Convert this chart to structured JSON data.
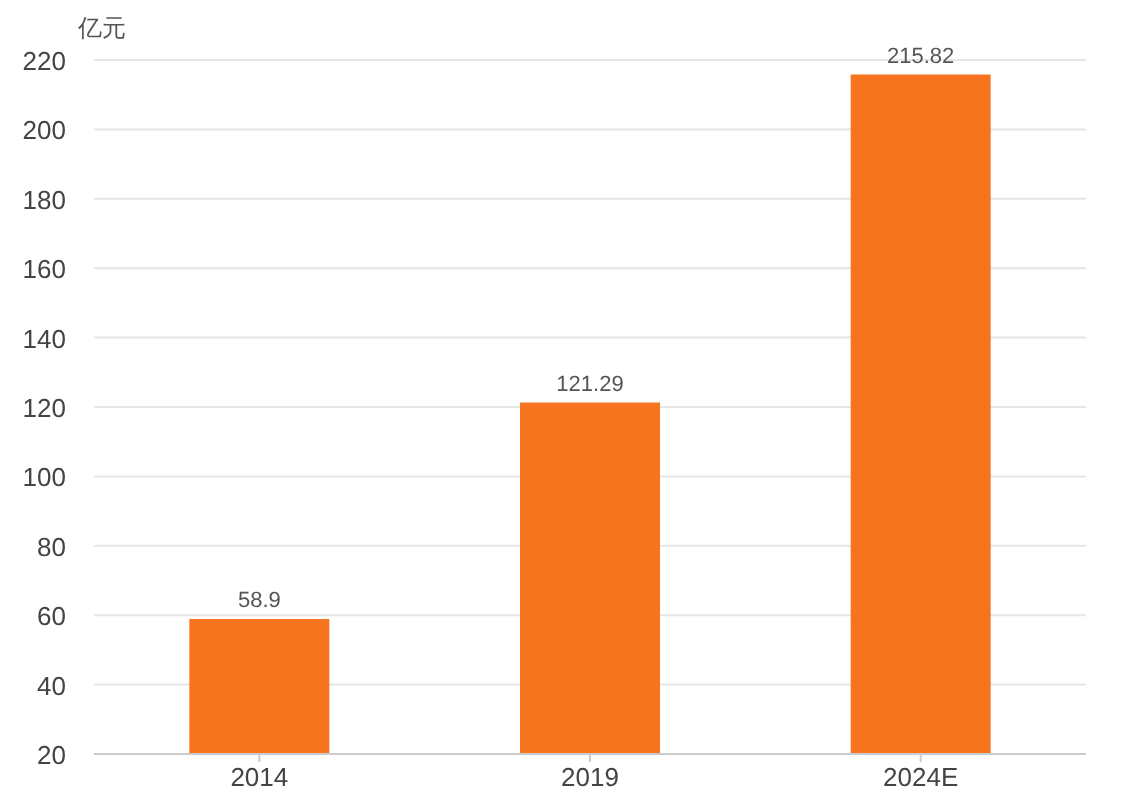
{
  "chart_data": {
    "type": "bar",
    "ylabel": "亿元",
    "categories": [
      "2014",
      "2019",
      "2024E"
    ],
    "values": [
      58.9,
      121.29,
      215.82
    ],
    "color": "#f7741f",
    "ylim": [
      20,
      220
    ],
    "yticks": [
      20,
      40,
      60,
      80,
      100,
      120,
      140,
      160,
      180,
      200,
      220
    ],
    "grid": "y",
    "data_labels": true
  }
}
